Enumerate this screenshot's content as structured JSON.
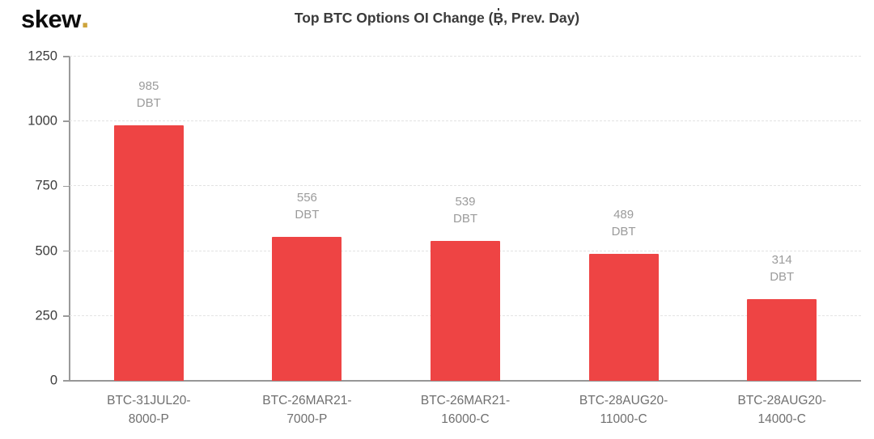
{
  "header": {
    "logo_text": "skew",
    "logo_dot": ".",
    "logo_dot_color": "#cda43c"
  },
  "chart_data": {
    "type": "bar",
    "title": "Top BTC Options OI Change (₿, Prev. Day)",
    "categories": [
      "BTC-31JUL20-8000-P",
      "BTC-26MAR21-7000-P",
      "BTC-26MAR21-16000-C",
      "BTC-28AUG20-11000-C",
      "BTC-28AUG20-14000-C"
    ],
    "values": [
      985,
      556,
      539,
      489,
      314
    ],
    "unit": "DBT",
    "xlabel": "",
    "ylabel": "",
    "ylim": [
      0,
      1250
    ],
    "yticks": [
      0,
      250,
      500,
      750,
      1000,
      1250
    ],
    "grid": "horizontal-dashed",
    "legend": "none",
    "bar_color": "#ee4444",
    "value_label_color": "#9b9b9b",
    "axis_color": "#9a9a9a"
  }
}
